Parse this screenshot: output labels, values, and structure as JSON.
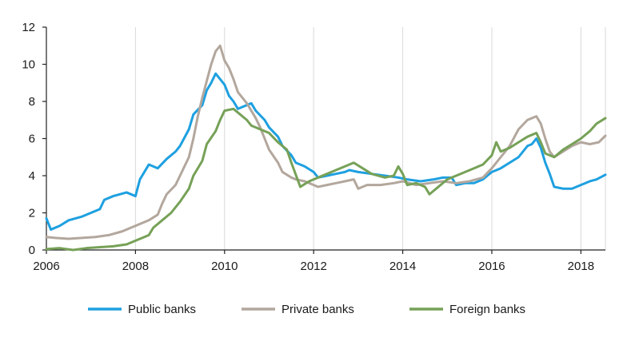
{
  "chart_data": {
    "type": "line",
    "title": "",
    "xlabel": "",
    "ylabel": "",
    "xlim": [
      2006,
      2018.55
    ],
    "ylim": [
      0,
      12
    ],
    "x_ticks": [
      "2006",
      "2008",
      "2010",
      "2012",
      "2014",
      "2016",
      "2018"
    ],
    "y_ticks": [
      "0",
      "2",
      "4",
      "6",
      "8",
      "10",
      "12"
    ],
    "grid": "vertical",
    "legend_position": "bottom",
    "series": [
      {
        "name": "Public banks",
        "color": "#1ea0e0",
        "points": [
          [
            2006.0,
            1.7
          ],
          [
            2006.1,
            1.1
          ],
          [
            2006.3,
            1.3
          ],
          [
            2006.5,
            1.6
          ],
          [
            2006.8,
            1.8
          ],
          [
            2007.0,
            2.0
          ],
          [
            2007.2,
            2.2
          ],
          [
            2007.3,
            2.7
          ],
          [
            2007.5,
            2.9
          ],
          [
            2007.8,
            3.1
          ],
          [
            2008.0,
            2.9
          ],
          [
            2008.1,
            3.8
          ],
          [
            2008.3,
            4.6
          ],
          [
            2008.5,
            4.4
          ],
          [
            2008.7,
            4.9
          ],
          [
            2008.9,
            5.3
          ],
          [
            2009.0,
            5.6
          ],
          [
            2009.2,
            6.5
          ],
          [
            2009.3,
            7.3
          ],
          [
            2009.5,
            7.8
          ],
          [
            2009.6,
            8.6
          ],
          [
            2009.7,
            9.0
          ],
          [
            2009.8,
            9.5
          ],
          [
            2009.9,
            9.2
          ],
          [
            2010.0,
            8.9
          ],
          [
            2010.1,
            8.3
          ],
          [
            2010.2,
            8.0
          ],
          [
            2010.3,
            7.6
          ],
          [
            2010.5,
            7.8
          ],
          [
            2010.6,
            7.9
          ],
          [
            2010.7,
            7.5
          ],
          [
            2010.9,
            7.0
          ],
          [
            2011.0,
            6.6
          ],
          [
            2011.2,
            6.1
          ],
          [
            2011.3,
            5.6
          ],
          [
            2011.5,
            5.1
          ],
          [
            2011.6,
            4.7
          ],
          [
            2011.8,
            4.5
          ],
          [
            2012.0,
            4.2
          ],
          [
            2012.1,
            3.9
          ],
          [
            2012.3,
            4.0
          ],
          [
            2012.5,
            4.1
          ],
          [
            2012.7,
            4.2
          ],
          [
            2012.8,
            4.3
          ],
          [
            2013.0,
            4.2
          ],
          [
            2013.3,
            4.1
          ],
          [
            2013.6,
            4.0
          ],
          [
            2013.9,
            3.9
          ],
          [
            2014.1,
            3.8
          ],
          [
            2014.4,
            3.7
          ],
          [
            2014.7,
            3.8
          ],
          [
            2014.9,
            3.9
          ],
          [
            2015.1,
            3.9
          ],
          [
            2015.2,
            3.5
          ],
          [
            2015.4,
            3.6
          ],
          [
            2015.6,
            3.6
          ],
          [
            2015.8,
            3.8
          ],
          [
            2016.0,
            4.2
          ],
          [
            2016.2,
            4.4
          ],
          [
            2016.4,
            4.7
          ],
          [
            2016.6,
            5.0
          ],
          [
            2016.8,
            5.6
          ],
          [
            2016.9,
            5.7
          ],
          [
            2017.0,
            6.0
          ],
          [
            2017.1,
            5.5
          ],
          [
            2017.2,
            4.7
          ],
          [
            2017.3,
            4.1
          ],
          [
            2017.4,
            3.4
          ],
          [
            2017.6,
            3.3
          ],
          [
            2017.8,
            3.3
          ],
          [
            2018.0,
            3.5
          ],
          [
            2018.2,
            3.7
          ],
          [
            2018.35,
            3.8
          ],
          [
            2018.55,
            4.05
          ]
        ]
      },
      {
        "name": "Private banks",
        "color": "#b3a79d",
        "points": [
          [
            2006.0,
            0.7
          ],
          [
            2006.2,
            0.65
          ],
          [
            2006.5,
            0.6
          ],
          [
            2006.8,
            0.65
          ],
          [
            2007.1,
            0.7
          ],
          [
            2007.4,
            0.8
          ],
          [
            2007.7,
            1.0
          ],
          [
            2008.0,
            1.3
          ],
          [
            2008.3,
            1.6
          ],
          [
            2008.5,
            1.9
          ],
          [
            2008.6,
            2.5
          ],
          [
            2008.7,
            3.0
          ],
          [
            2008.9,
            3.5
          ],
          [
            2009.0,
            4.0
          ],
          [
            2009.2,
            5.0
          ],
          [
            2009.3,
            6.0
          ],
          [
            2009.4,
            7.2
          ],
          [
            2009.5,
            8.2
          ],
          [
            2009.6,
            9.1
          ],
          [
            2009.7,
            10.0
          ],
          [
            2009.8,
            10.7
          ],
          [
            2009.9,
            11.0
          ],
          [
            2010.0,
            10.2
          ],
          [
            2010.1,
            9.8
          ],
          [
            2010.2,
            9.2
          ],
          [
            2010.3,
            8.5
          ],
          [
            2010.4,
            8.2
          ],
          [
            2010.5,
            7.9
          ],
          [
            2010.6,
            7.5
          ],
          [
            2010.7,
            7.1
          ],
          [
            2010.8,
            6.6
          ],
          [
            2010.9,
            6.0
          ],
          [
            2011.0,
            5.4
          ],
          [
            2011.2,
            4.7
          ],
          [
            2011.3,
            4.2
          ],
          [
            2011.5,
            3.9
          ],
          [
            2011.6,
            3.8
          ],
          [
            2011.8,
            3.7
          ],
          [
            2012.0,
            3.5
          ],
          [
            2012.1,
            3.4
          ],
          [
            2012.3,
            3.5
          ],
          [
            2012.5,
            3.6
          ],
          [
            2012.7,
            3.7
          ],
          [
            2012.9,
            3.8
          ],
          [
            2013.0,
            3.3
          ],
          [
            2013.2,
            3.5
          ],
          [
            2013.5,
            3.5
          ],
          [
            2013.8,
            3.6
          ],
          [
            2014.0,
            3.7
          ],
          [
            2014.3,
            3.5
          ],
          [
            2014.6,
            3.6
          ],
          [
            2014.9,
            3.7
          ],
          [
            2015.2,
            3.6
          ],
          [
            2015.5,
            3.7
          ],
          [
            2015.8,
            3.9
          ],
          [
            2016.0,
            4.4
          ],
          [
            2016.2,
            5.0
          ],
          [
            2016.4,
            5.6
          ],
          [
            2016.6,
            6.5
          ],
          [
            2016.8,
            7.0
          ],
          [
            2016.9,
            7.1
          ],
          [
            2017.0,
            7.2
          ],
          [
            2017.1,
            6.8
          ],
          [
            2017.2,
            6.0
          ],
          [
            2017.3,
            5.3
          ],
          [
            2017.4,
            5.0
          ],
          [
            2017.6,
            5.3
          ],
          [
            2017.8,
            5.6
          ],
          [
            2018.0,
            5.8
          ],
          [
            2018.2,
            5.7
          ],
          [
            2018.4,
            5.8
          ],
          [
            2018.55,
            6.15
          ]
        ]
      },
      {
        "name": "Foreign banks",
        "color": "#76a157",
        "points": [
          [
            2006.0,
            0.05
          ],
          [
            2006.3,
            0.1
          ],
          [
            2006.6,
            0.0
          ],
          [
            2006.9,
            0.1
          ],
          [
            2007.2,
            0.15
          ],
          [
            2007.5,
            0.2
          ],
          [
            2007.8,
            0.3
          ],
          [
            2008.0,
            0.5
          ],
          [
            2008.2,
            0.7
          ],
          [
            2008.3,
            0.8
          ],
          [
            2008.4,
            1.2
          ],
          [
            2008.6,
            1.6
          ],
          [
            2008.8,
            2.0
          ],
          [
            2009.0,
            2.6
          ],
          [
            2009.2,
            3.3
          ],
          [
            2009.3,
            4.0
          ],
          [
            2009.5,
            4.8
          ],
          [
            2009.6,
            5.7
          ],
          [
            2009.8,
            6.4
          ],
          [
            2009.9,
            7.0
          ],
          [
            2010.0,
            7.5
          ],
          [
            2010.2,
            7.6
          ],
          [
            2010.3,
            7.4
          ],
          [
            2010.5,
            7.0
          ],
          [
            2010.6,
            6.7
          ],
          [
            2010.8,
            6.5
          ],
          [
            2011.0,
            6.3
          ],
          [
            2011.2,
            5.8
          ],
          [
            2011.4,
            5.4
          ],
          [
            2011.5,
            4.7
          ],
          [
            2011.7,
            3.4
          ],
          [
            2011.9,
            3.7
          ],
          [
            2012.1,
            3.9
          ],
          [
            2012.3,
            4.1
          ],
          [
            2012.5,
            4.3
          ],
          [
            2012.7,
            4.5
          ],
          [
            2012.9,
            4.7
          ],
          [
            2013.1,
            4.4
          ],
          [
            2013.3,
            4.1
          ],
          [
            2013.6,
            3.9
          ],
          [
            2013.8,
            4.0
          ],
          [
            2013.9,
            4.5
          ],
          [
            2014.0,
            4.1
          ],
          [
            2014.1,
            3.5
          ],
          [
            2014.3,
            3.6
          ],
          [
            2014.5,
            3.4
          ],
          [
            2014.6,
            3.0
          ],
          [
            2014.8,
            3.4
          ],
          [
            2015.0,
            3.8
          ],
          [
            2015.2,
            4.0
          ],
          [
            2015.4,
            4.2
          ],
          [
            2015.6,
            4.4
          ],
          [
            2015.8,
            4.6
          ],
          [
            2016.0,
            5.1
          ],
          [
            2016.1,
            5.8
          ],
          [
            2016.2,
            5.3
          ],
          [
            2016.4,
            5.5
          ],
          [
            2016.6,
            5.8
          ],
          [
            2016.8,
            6.1
          ],
          [
            2017.0,
            6.3
          ],
          [
            2017.1,
            5.8
          ],
          [
            2017.2,
            5.2
          ],
          [
            2017.4,
            5.0
          ],
          [
            2017.6,
            5.4
          ],
          [
            2017.8,
            5.7
          ],
          [
            2018.0,
            6.0
          ],
          [
            2018.2,
            6.4
          ],
          [
            2018.35,
            6.8
          ],
          [
            2018.55,
            7.1
          ]
        ]
      }
    ]
  }
}
